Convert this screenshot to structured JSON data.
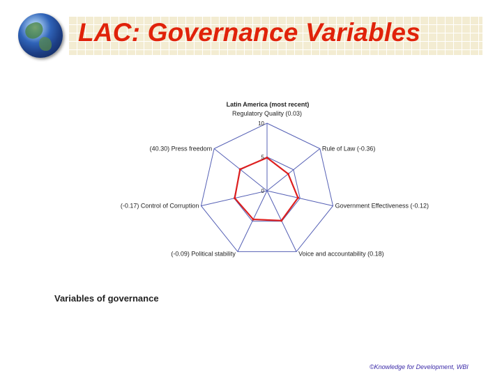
{
  "slide": {
    "title": "LAC: Governance Variables",
    "caption": "Variables of governance",
    "footer": "©Knowledge for Development, WBI"
  },
  "icons": {
    "logo": "globe-icon"
  },
  "colors": {
    "title": "#e0220a",
    "grid": "#5560b5",
    "series": "#dd1f1f",
    "band": "#f3ecd2"
  },
  "chart_data": {
    "type": "radar",
    "title": "Latin America (most recent)",
    "axes": [
      "Regulatory Quality (0.03)",
      "Rule of Law (-0.36)",
      "Government Effectiveness (-0.12)",
      "Voice and accountability (0.18)",
      "(-0.09) Political stability",
      "(-0.17) Control of Corruption",
      "(40.30) Press freedom"
    ],
    "ticks": [
      "10",
      "5",
      "0"
    ],
    "range": [
      0,
      10
    ],
    "series": [
      {
        "values": [
          4.9,
          4.0,
          4.7,
          4.9,
          4.7,
          4.9,
          5.1
        ]
      }
    ],
    "grid": true
  }
}
